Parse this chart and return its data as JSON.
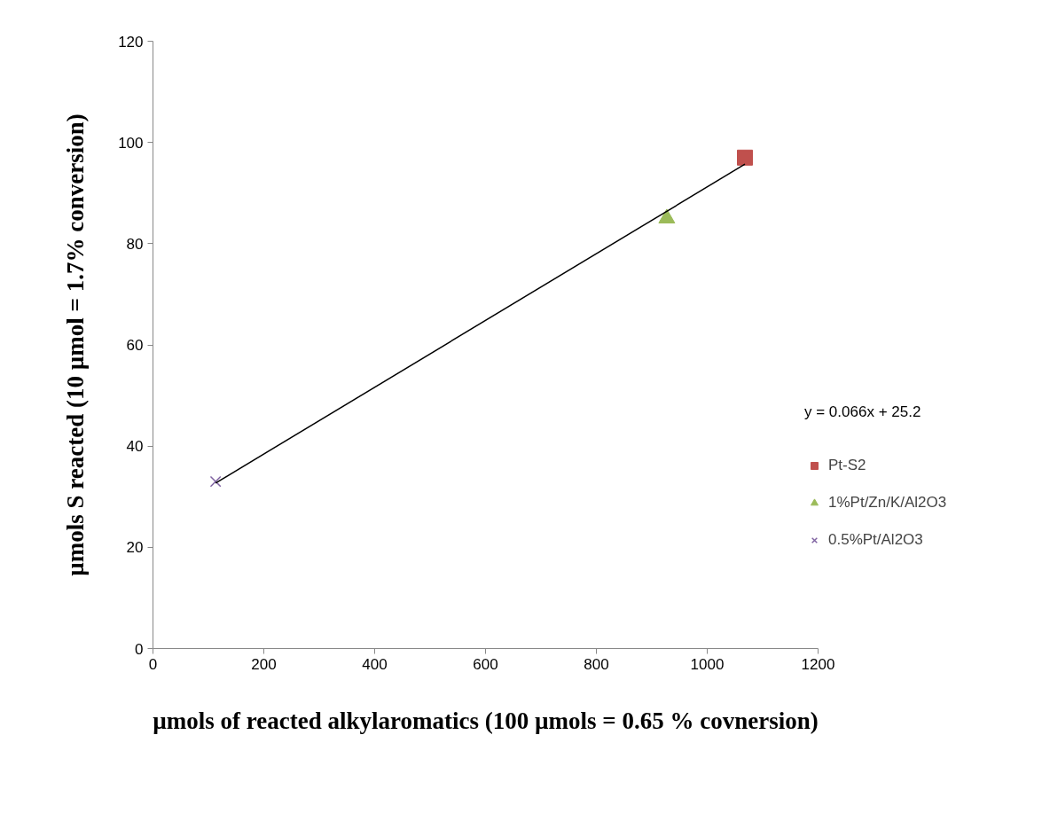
{
  "chart_data": {
    "type": "scatter",
    "xlabel": "µmols of reacted alkylaromatics (100 µmols = 0.65 % covnersion)",
    "ylabel": "µmols S reacted (10 µmol = 1.7% conversion)",
    "xlim": [
      0,
      1200
    ],
    "xticks": [
      0,
      200,
      400,
      600,
      800,
      1000,
      1200
    ],
    "ylim": [
      0,
      120
    ],
    "yticks": [
      0,
      20,
      40,
      60,
      80,
      100,
      120
    ],
    "grid": false,
    "legend": "right",
    "annotations": [
      "y = 0.066x + 25.2"
    ],
    "series": [
      {
        "name": "Pt-S2",
        "color": "#c0504d",
        "marker": "square",
        "x": [
          1068
        ],
        "values": [
          97
        ]
      },
      {
        "name": "1%Pt/Zn/K/Al2O3",
        "color": "#9bbb59",
        "marker": "triangle",
        "x": [
          927
        ],
        "values": [
          85
        ]
      },
      {
        "name": "0.5%Pt/Al2O3",
        "color": "#8064a2",
        "marker": "cross",
        "x": [
          113
        ],
        "values": [
          33
        ]
      },
      {
        "type": "line",
        "color": "#000000",
        "line_style": "solid",
        "x": [
          113,
          1068
        ],
        "values": [
          32.7,
          95.7
        ]
      }
    ]
  }
}
